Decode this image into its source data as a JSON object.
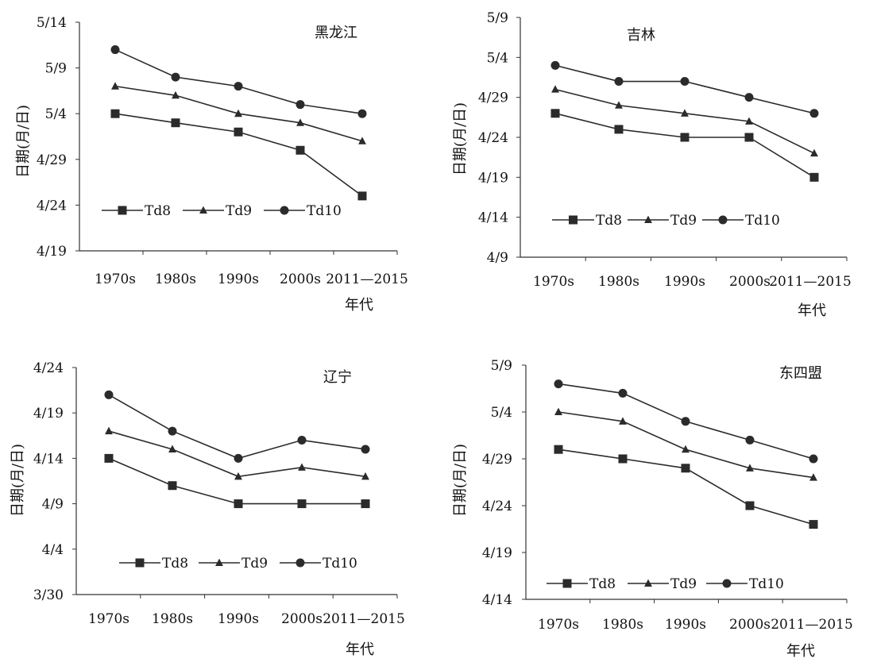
{
  "figure": {
    "ylabel": "日期(月/日)",
    "xlabel": "年代",
    "legend_position": "bottom-left",
    "grid": false
  },
  "chart_data": [
    {
      "type": "line",
      "title": "黑龙江",
      "xlabel": "年代",
      "ylabel": "日期(月/日)",
      "categories": [
        "1970s",
        "1980s",
        "1990s",
        "2000s",
        "2011—2015"
      ],
      "y_ticks": [
        "4/19",
        "4/24",
        "4/29",
        "5/4",
        "5/9",
        "5/14"
      ],
      "ylim": [
        "4/19",
        "5/14"
      ],
      "legend": "bottom-left",
      "series": [
        {
          "name": "Td8",
          "marker": "square",
          "values": [
            "5/4",
            "5/3",
            "5/2",
            "4/30",
            "4/25"
          ]
        },
        {
          "name": "Td9",
          "marker": "triangle",
          "values": [
            "5/7",
            "5/6",
            "5/4",
            "5/3",
            "5/1"
          ]
        },
        {
          "name": "Td10",
          "marker": "circle",
          "values": [
            "5/11",
            "5/8",
            "5/7",
            "5/5",
            "5/4"
          ]
        }
      ]
    },
    {
      "type": "line",
      "title": "吉林",
      "xlabel": "年代",
      "ylabel": "日期(月/日)",
      "categories": [
        "1970s",
        "1980s",
        "1990s",
        "2000s",
        "2011—2015"
      ],
      "y_ticks": [
        "4/9",
        "4/14",
        "4/19",
        "4/24",
        "4/29",
        "5/4",
        "5/9"
      ],
      "ylim": [
        "4/9",
        "5/9"
      ],
      "legend": "bottom-left",
      "series": [
        {
          "name": "Td8",
          "marker": "square",
          "values": [
            "4/27",
            "4/25",
            "4/24",
            "4/24",
            "4/19"
          ]
        },
        {
          "name": "Td9",
          "marker": "triangle",
          "values": [
            "4/30",
            "4/28",
            "4/27",
            "4/26",
            "4/22"
          ]
        },
        {
          "name": "Td10",
          "marker": "circle",
          "values": [
            "5/3",
            "5/1",
            "5/1",
            "4/29",
            "4/27"
          ]
        }
      ]
    },
    {
      "type": "line",
      "title": "辽宁",
      "xlabel": "年代",
      "ylabel": "日期(月/日)",
      "categories": [
        "1970s",
        "1980s",
        "1990s",
        "2000s",
        "2011—2015"
      ],
      "y_ticks": [
        "3/30",
        "4/4",
        "4/9",
        "4/14",
        "4/19",
        "4/24"
      ],
      "ylim": [
        "3/30",
        "4/24"
      ],
      "legend": "bottom-left",
      "series": [
        {
          "name": "Td8",
          "marker": "square",
          "values": [
            "4/14",
            "4/11",
            "4/9",
            "4/9",
            "4/9"
          ]
        },
        {
          "name": "Td9",
          "marker": "triangle",
          "values": [
            "4/17",
            "4/15",
            "4/12",
            "4/13",
            "4/12"
          ]
        },
        {
          "name": "Td10",
          "marker": "circle",
          "values": [
            "4/21",
            "4/17",
            "4/14",
            "4/16",
            "4/15"
          ]
        }
      ]
    },
    {
      "type": "line",
      "title": "东四盟",
      "xlabel": "年代",
      "ylabel": "日期(月/日)",
      "categories": [
        "1970s",
        "1980s",
        "1990s",
        "2000s",
        "2011—2015"
      ],
      "y_ticks": [
        "4/14",
        "4/19",
        "4/24",
        "4/29",
        "5/4",
        "5/9"
      ],
      "ylim": [
        "4/14",
        "5/9"
      ],
      "legend": "bottom-left",
      "series": [
        {
          "name": "Td8",
          "marker": "square",
          "values": [
            "4/30",
            "4/29",
            "4/28",
            "4/24",
            "4/22"
          ]
        },
        {
          "name": "Td9",
          "marker": "triangle",
          "values": [
            "5/4",
            "5/3",
            "4/30",
            "4/28",
            "4/27"
          ]
        },
        {
          "name": "Td10",
          "marker": "circle",
          "values": [
            "5/7",
            "5/6",
            "5/3",
            "5/1",
            "4/29"
          ]
        }
      ]
    }
  ]
}
